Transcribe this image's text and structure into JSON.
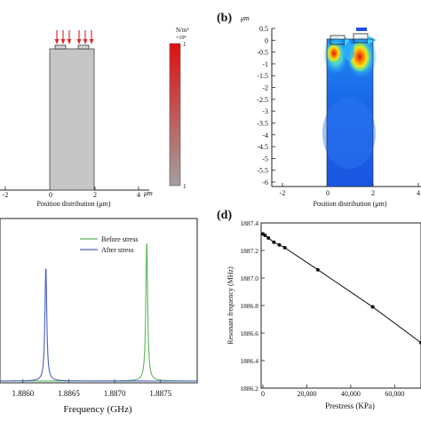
{
  "chart_data": [
    {
      "type": "field",
      "panel_label": "",
      "xlabel": "Position distribution (μm)",
      "x_unit": "μm",
      "x_ticks": [
        "-2",
        "0",
        "2",
        "4"
      ],
      "colorbar_unit": "N/m²",
      "colorbar_scale": "×10⁸",
      "colorbar_max": "1",
      "colorbar_min": "1",
      "colors": {
        "block": "#c6c6c6",
        "arrow": "#d93030",
        "bar_top": "#e01010",
        "bar_bottom": "#a0a0a0"
      }
    },
    {
      "type": "heatmap",
      "panel_label": "(b)",
      "unit": "μm",
      "xlabel": "Position distribution (μm)",
      "x_ticks": [
        "-2",
        "0",
        "2",
        "4"
      ],
      "y_ticks": [
        "0.5",
        "0",
        "-0.5",
        "-1",
        "-1.5",
        "-2",
        "-2.5",
        "-3",
        "-3.5",
        "-4",
        "-4.5",
        "-5",
        "-5.5",
        "-6"
      ],
      "colors": {
        "base": "#1a64e6",
        "hot": "#e02a10"
      }
    },
    {
      "type": "line",
      "panel_label": "",
      "xlabel": "Frequency (GHz)",
      "x_ticks": [
        "1.8860",
        "1.8865",
        "1.8870",
        "1.8875"
      ],
      "series": [
        {
          "name": "Before stress",
          "color": "#5cb85c",
          "peak_x": 1.88735,
          "peak_height": 0.88
        },
        {
          "name": "After stress",
          "color": "#4a5fc1",
          "peak_x": 1.88625,
          "peak_height": 0.72
        }
      ]
    },
    {
      "type": "scatter",
      "panel_label": "(d)",
      "xlabel": "Prestress   (KPa)",
      "ylabel": "Resonant frequency (MHz)",
      "x_ticks": [
        "0",
        "20,000",
        "40,000",
        "60,000"
      ],
      "y_ticks": [
        "1887.4",
        "1887.2",
        "1887.0",
        "1886.8",
        "1886.6",
        "1886.4",
        "1886.2"
      ],
      "xlim": [
        0,
        72000
      ],
      "ylim": [
        1886.2,
        1887.4
      ],
      "points": [
        {
          "x": 0,
          "y": 1887.32
        },
        {
          "x": 1000,
          "y": 1887.31
        },
        {
          "x": 2500,
          "y": 1887.29
        },
        {
          "x": 5000,
          "y": 1887.26
        },
        {
          "x": 7500,
          "y": 1887.24
        },
        {
          "x": 10000,
          "y": 1887.22
        },
        {
          "x": 25000,
          "y": 1887.06
        },
        {
          "x": 50000,
          "y": 1886.79
        },
        {
          "x": 72000,
          "y": 1886.53
        }
      ]
    }
  ]
}
